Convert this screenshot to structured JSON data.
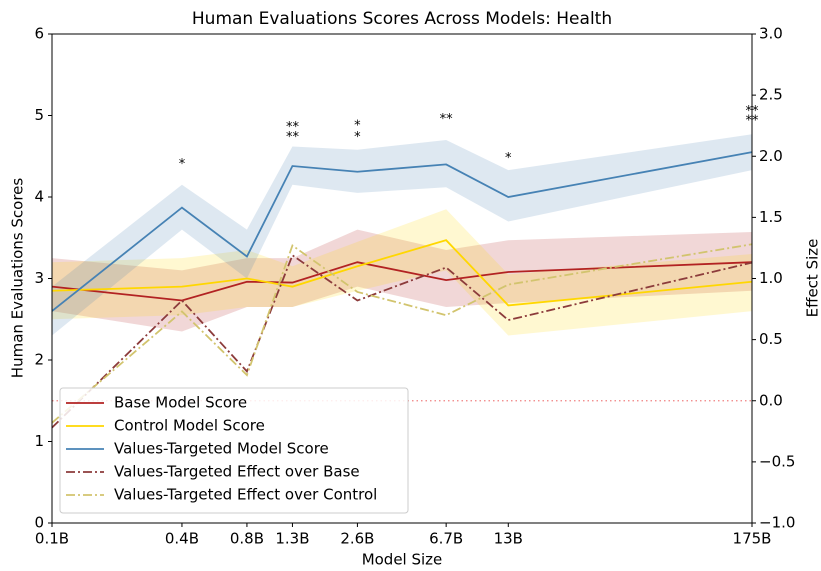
{
  "chart_data": {
    "type": "line",
    "title": "Human Evaluations Scores Across Models: Health",
    "xlabel": "Model Size",
    "ylabel": "Human Evaluations Scores",
    "y2label": "Effect Size",
    "xscale": "log",
    "x": [
      0.1,
      0.4,
      0.8,
      1.3,
      2.6,
      6.7,
      13,
      175
    ],
    "xlim": [
      0.1,
      175
    ],
    "xticks": [
      {
        "value": 0.1,
        "label": "0.1B"
      },
      {
        "value": 0.4,
        "label": "0.4B"
      },
      {
        "value": 0.8,
        "label": "0.8B"
      },
      {
        "value": 1.3,
        "label": "1.3B"
      },
      {
        "value": 2.6,
        "label": "2.6B"
      },
      {
        "value": 6.7,
        "label": "6.7B"
      },
      {
        "value": 13,
        "label": "13B"
      },
      {
        "value": 175,
        "label": "175B"
      }
    ],
    "ylim": [
      0,
      6
    ],
    "yticks": [
      0,
      1,
      2,
      3,
      4,
      5,
      6
    ],
    "y2lim": [
      -1,
      3
    ],
    "y2ticks": [
      {
        "value": -1,
        "label": "−1.0"
      },
      {
        "value": -0.5,
        "label": "−0.5"
      },
      {
        "value": 0,
        "label": "0.0"
      },
      {
        "value": 0.5,
        "label": "0.5"
      },
      {
        "value": 1,
        "label": "1.0"
      },
      {
        "value": 1.5,
        "label": "1.5"
      },
      {
        "value": 2,
        "label": "2.0"
      },
      {
        "value": 2.5,
        "label": "2.5"
      },
      {
        "value": 3,
        "label": "3.0"
      }
    ],
    "y2_reference_line": 0,
    "legend": "lower left",
    "series": [
      {
        "name": "Base Model Score",
        "color": "#b22222",
        "style": "solid",
        "values": [
          2.9,
          2.73,
          2.96,
          2.95,
          3.2,
          2.98,
          3.08,
          3.2
        ],
        "lower": [
          2.6,
          2.35,
          2.65,
          2.65,
          2.9,
          2.65,
          2.7,
          2.85
        ],
        "upper": [
          3.25,
          3.1,
          3.25,
          3.25,
          3.6,
          3.35,
          3.47,
          3.57
        ]
      },
      {
        "name": "Control Model Score",
        "color": "#ffd700",
        "style": "solid",
        "values": [
          2.85,
          2.9,
          3.0,
          2.9,
          3.15,
          3.47,
          2.67,
          2.96
        ],
        "lower": [
          2.5,
          2.55,
          2.65,
          2.65,
          2.85,
          3.1,
          2.3,
          2.6
        ],
        "upper": [
          3.2,
          3.25,
          3.35,
          3.15,
          3.45,
          3.85,
          3.05,
          3.3
        ]
      },
      {
        "name": "Values-Targeted Model Score",
        "color": "#4682b4",
        "style": "solid",
        "values": [
          2.6,
          3.87,
          3.27,
          4.38,
          4.31,
          4.4,
          4.0,
          4.55
        ],
        "lower": [
          2.3,
          3.6,
          3.0,
          4.15,
          4.05,
          4.12,
          3.7,
          4.33
        ],
        "upper": [
          2.9,
          4.15,
          3.6,
          4.62,
          4.58,
          4.7,
          4.33,
          4.77
        ]
      },
      {
        "name": "Values-Targeted Effect over Base",
        "color": "#8c3b3b",
        "style": "dashdot",
        "axis": "y2",
        "values": [
          -0.22,
          0.82,
          0.24,
          1.19,
          0.82,
          1.09,
          0.66,
          1.13
        ]
      },
      {
        "name": "Values-Targeted Effect over Control",
        "color": "#d2c46e",
        "style": "dashdot",
        "axis": "y2",
        "values": [
          -0.18,
          0.73,
          0.21,
          1.27,
          0.89,
          0.7,
          0.95,
          1.28
        ]
      }
    ],
    "annotations": [
      {
        "text": "*",
        "x": 0.4,
        "y": 4.4,
        "color": "#b22222"
      },
      {
        "text": "**",
        "x": 1.3,
        "y": 4.85,
        "color": "#b22222"
      },
      {
        "text": "**",
        "x": 1.3,
        "y": 4.73,
        "color": "#ffd700"
      },
      {
        "text": "*",
        "x": 2.6,
        "y": 4.87,
        "color": "#b22222"
      },
      {
        "text": "*",
        "x": 2.6,
        "y": 4.73,
        "color": "#ffd700"
      },
      {
        "text": "**",
        "x": 6.7,
        "y": 4.95,
        "color": "#b22222"
      },
      {
        "text": "*",
        "x": 13,
        "y": 4.47,
        "color": "#ffd700"
      },
      {
        "text": "**",
        "x": 175,
        "y": 5.05,
        "color": "#b22222"
      },
      {
        "text": "**",
        "x": 175,
        "y": 4.93,
        "color": "#ffd700"
      }
    ]
  }
}
